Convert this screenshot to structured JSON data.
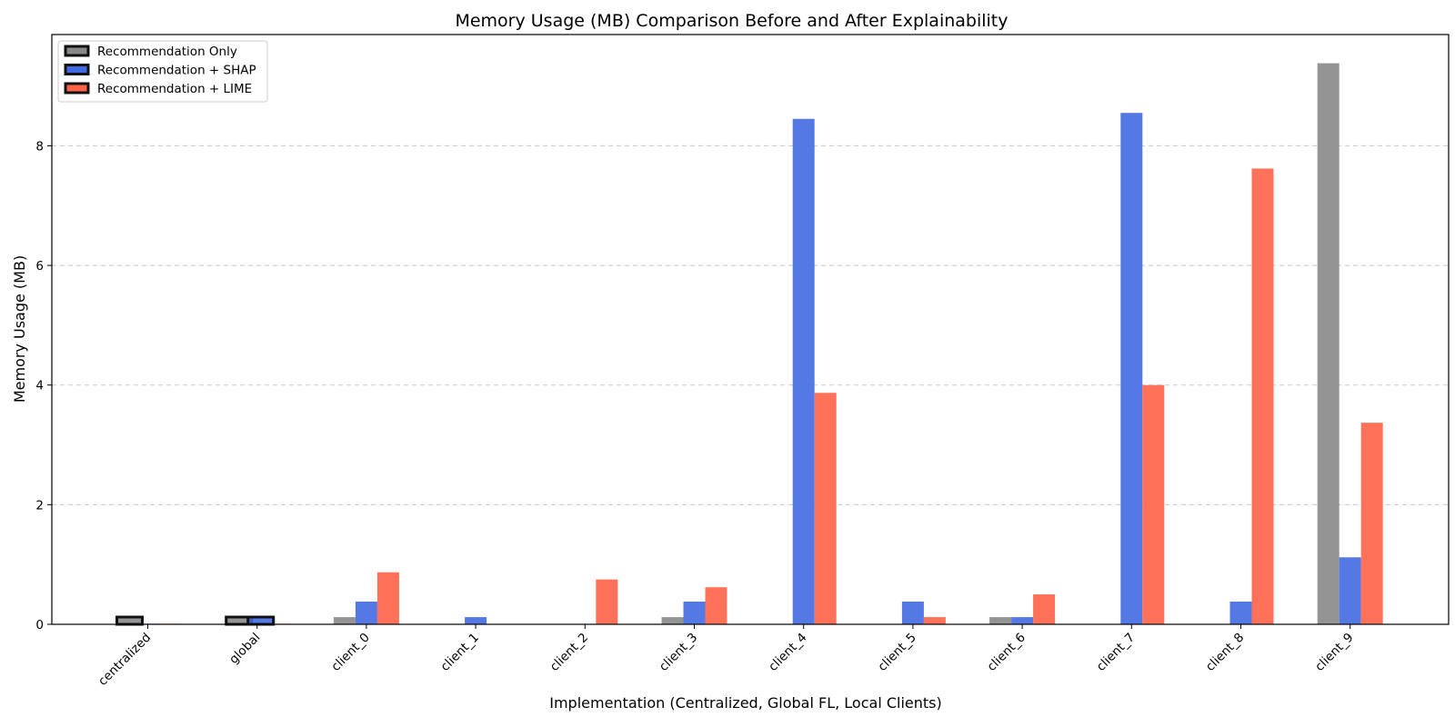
{
  "chart_data": {
    "type": "bar",
    "title": "Memory Usage (MB) Comparison Before and After Explainability",
    "xlabel": "Implementation (Centralized, Global FL, Local Clients)",
    "ylabel": "Memory Usage (MB)",
    "categories": [
      "centralized",
      "global",
      "client_0",
      "client_1",
      "client_2",
      "client_3",
      "client_4",
      "client_5",
      "client_6",
      "client_7",
      "client_8",
      "client_9"
    ],
    "series": [
      {
        "name": "Recommendation Only",
        "color": "#888888",
        "values": [
          0.12,
          0.12,
          0.12,
          0.0,
          0.0,
          0.12,
          0.0,
          0.0,
          0.12,
          0.0,
          0.0,
          9.38
        ],
        "highlighted": [
          true,
          true,
          false,
          false,
          false,
          false,
          false,
          false,
          false,
          false,
          false,
          false
        ]
      },
      {
        "name": "Recommendation + SHAP",
        "color": "#4169e1",
        "values": [
          0.01,
          0.12,
          0.38,
          0.12,
          0.0,
          0.38,
          8.45,
          0.38,
          0.12,
          8.55,
          0.38,
          1.12
        ],
        "highlighted": [
          false,
          true,
          false,
          false,
          false,
          false,
          false,
          false,
          false,
          false,
          false,
          false
        ]
      },
      {
        "name": "Recommendation + LIME",
        "color": "#ff6347",
        "values": [
          0.01,
          0.01,
          0.87,
          0.0,
          0.75,
          0.62,
          3.87,
          0.12,
          0.5,
          4.0,
          7.62,
          3.37
        ],
        "highlighted": [
          false,
          false,
          false,
          false,
          false,
          false,
          false,
          false,
          false,
          false,
          false,
          false
        ]
      }
    ],
    "ylim": [
      0,
      9.86
    ],
    "yticks": [
      0,
      2,
      4,
      6,
      8
    ],
    "grid": "y-dashed",
    "legend": "top-left"
  }
}
